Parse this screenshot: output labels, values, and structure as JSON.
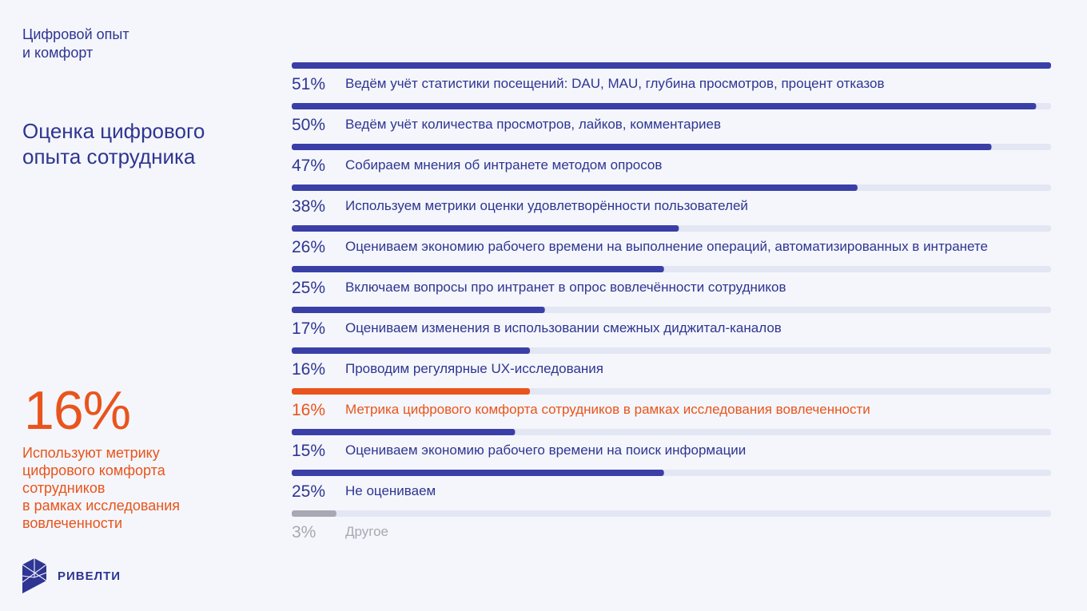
{
  "section_title": "Цифровой опыт\nи комфорт",
  "page_title": "Оценка цифрового\nопыта сотрудника",
  "highlight": {
    "value": "16%",
    "text": "Используют метрику\nцифрового комфорта\nсотрудников\nв рамках исследования\nвовлеченности"
  },
  "logo": {
    "text": "РИВЕЛТИ",
    "icon": "cube-logo-icon"
  },
  "colors": {
    "primary": "#3a3fa8",
    "highlight": "#e9541c",
    "muted": "#a7a8b3",
    "track": "#e3e6f3",
    "text": "#2f3592"
  },
  "chart_data": {
    "type": "bar",
    "orientation": "horizontal",
    "xlim": [
      0,
      51
    ],
    "items": [
      {
        "value": 51,
        "label": "51%",
        "text": "Ведём учёт статистики посещений: DAU, MAU, глубина просмотров, процент отказов",
        "style": "primary"
      },
      {
        "value": 50,
        "label": "50%",
        "text": "Ведём учёт количества просмотров, лайков, комментариев",
        "style": "primary"
      },
      {
        "value": 47,
        "label": "47%",
        "text": "Собираем мнения об интранете методом опросов",
        "style": "primary"
      },
      {
        "value": 38,
        "label": "38%",
        "text": "Используем метрики оценки удовлетворённости пользователей",
        "style": "primary"
      },
      {
        "value": 26,
        "label": "26%",
        "text": "Оцениваем экономию рабочего времени на выполнение операций, автоматизированных в интранете",
        "style": "primary"
      },
      {
        "value": 25,
        "label": "25%",
        "text": "Включаем вопросы про интранет в опрос вовлечённости сотрудников",
        "style": "primary"
      },
      {
        "value": 17,
        "label": "17%",
        "text": "Оцениваем изменения в использовании смежных диджитал-каналов",
        "style": "primary"
      },
      {
        "value": 16,
        "label": "16%",
        "text": "Проводим регулярные UX-исследования",
        "style": "primary"
      },
      {
        "value": 16,
        "label": "16%",
        "text": "Метрика цифрового комфорта сотрудников в рамках исследования вовлеченности",
        "style": "highlight"
      },
      {
        "value": 15,
        "label": "15%",
        "text": "Оцениваем экономию рабочего времени на поиск информации",
        "style": "primary"
      },
      {
        "value": 25,
        "label": "25%",
        "text": "Не оцениваем",
        "style": "primary"
      },
      {
        "value": 3,
        "label": "3%",
        "text": "Другое",
        "style": "muted"
      }
    ]
  }
}
